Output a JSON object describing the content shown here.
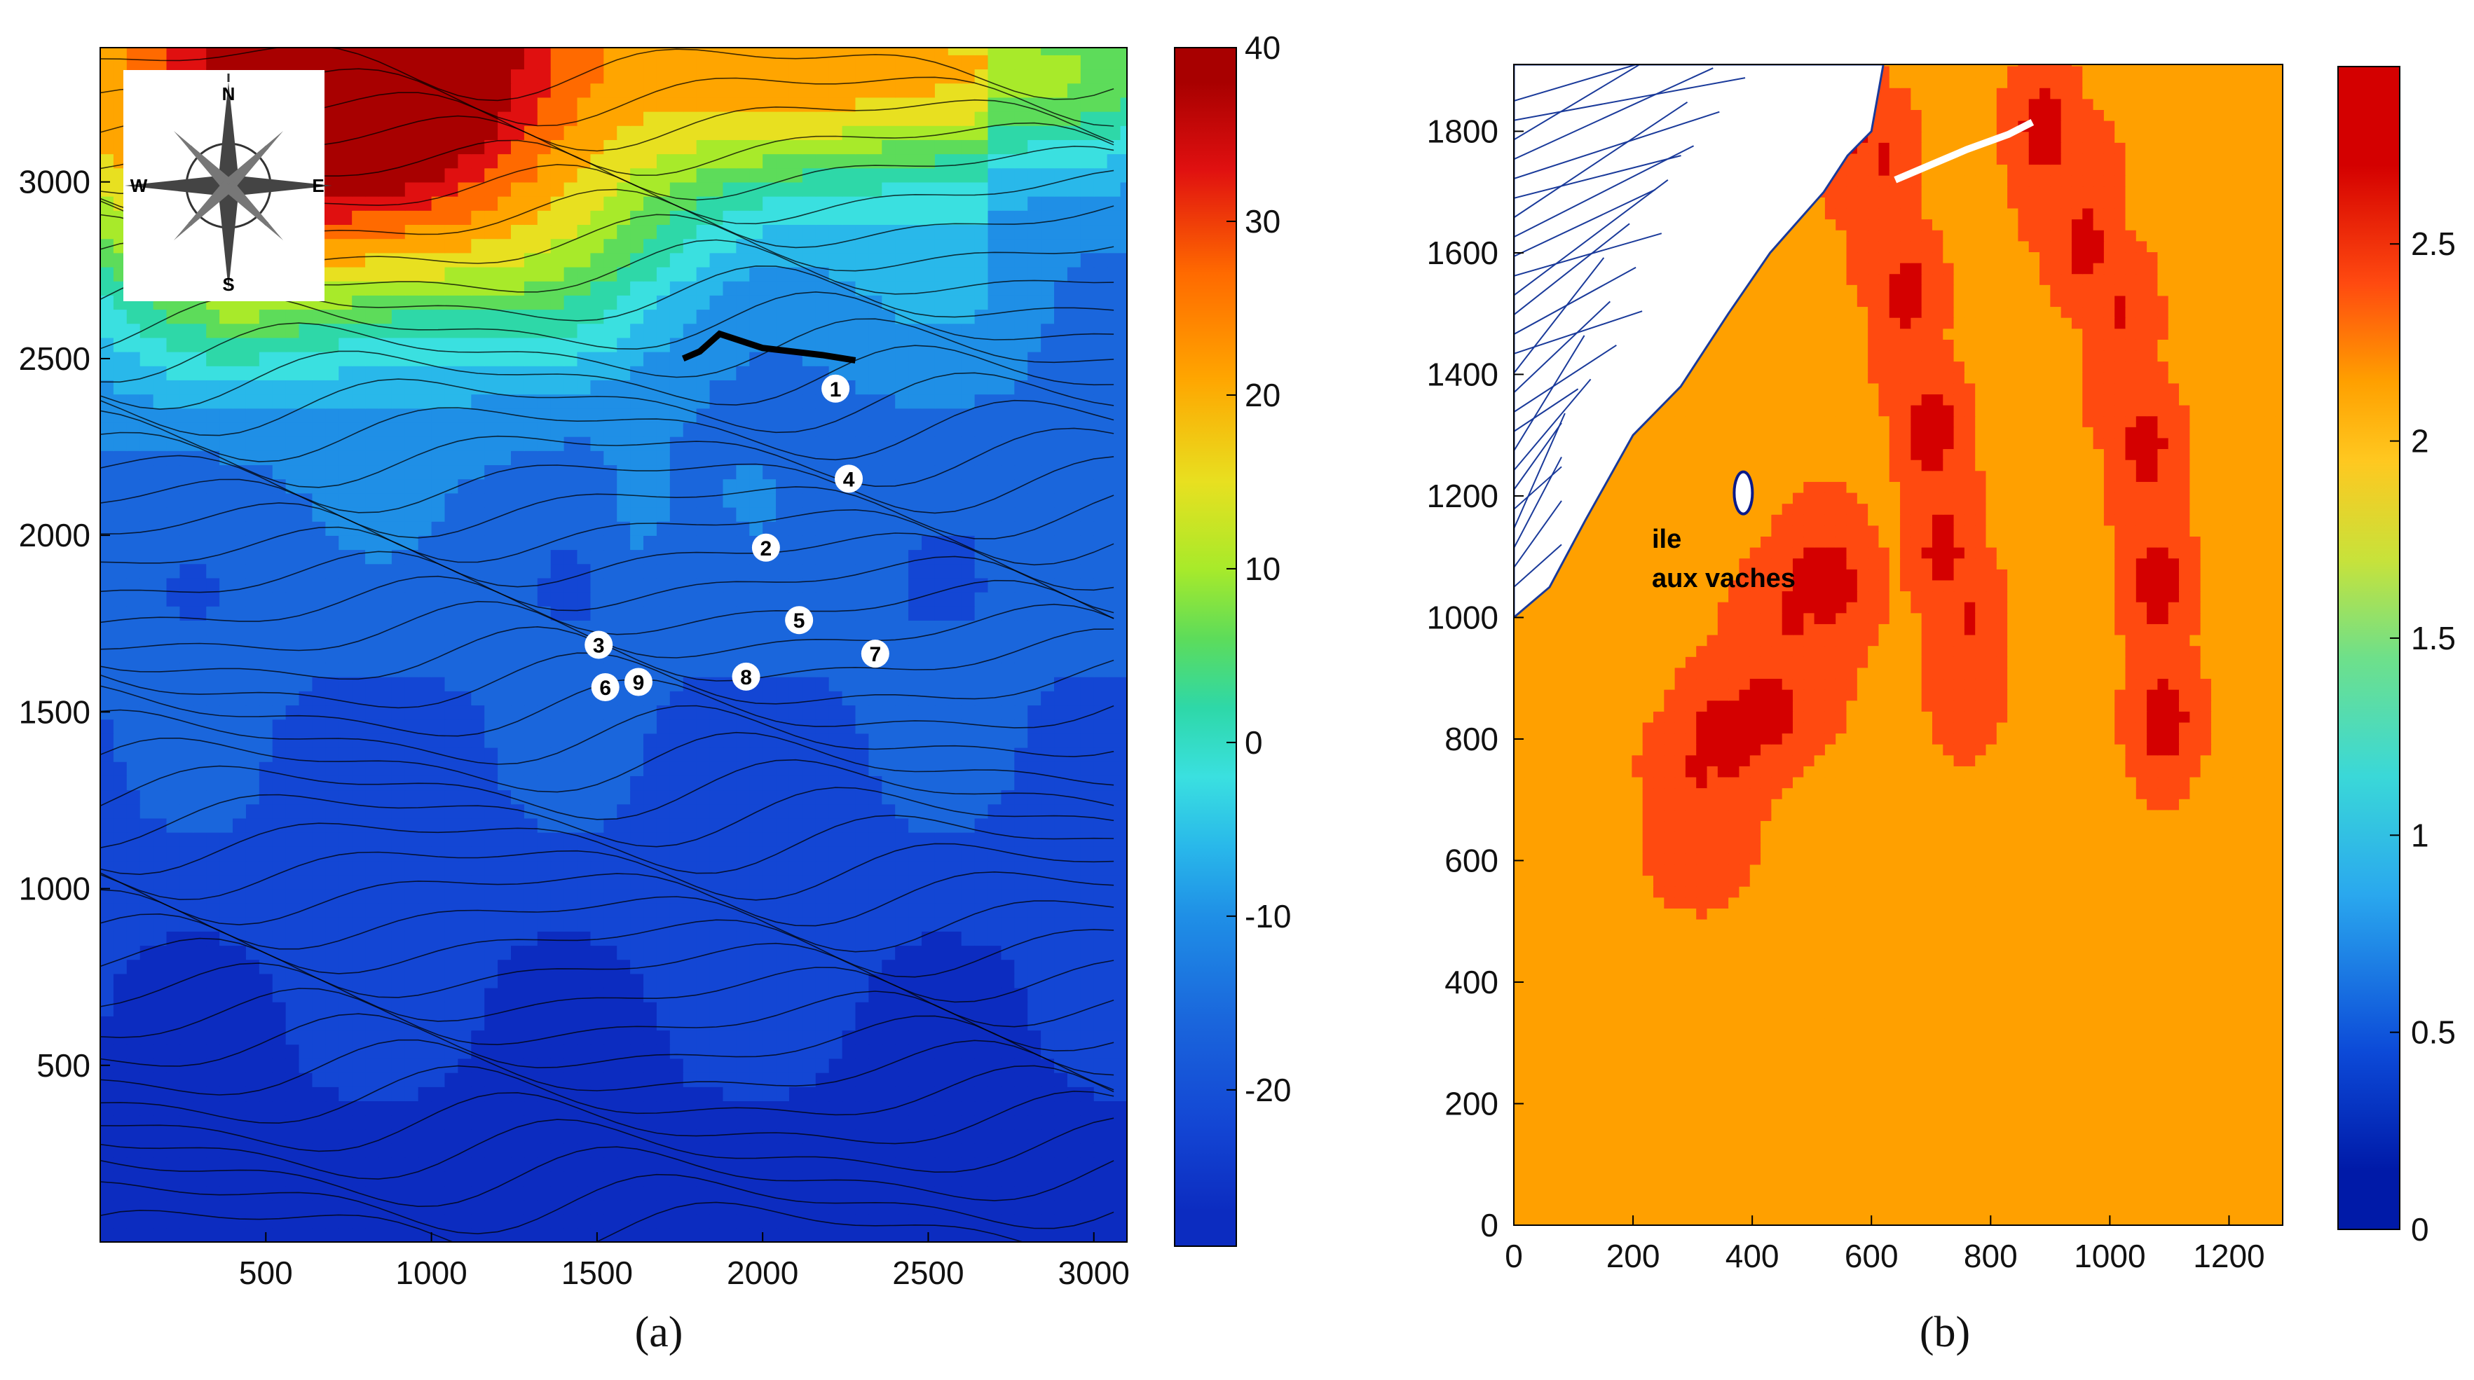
{
  "chart_data": [
    {
      "type": "heatmap",
      "panel_label": "(a)",
      "x_ticks": [
        500,
        1000,
        1500,
        2000,
        2500,
        3000
      ],
      "y_ticks": [
        500,
        1000,
        1500,
        2000,
        2500,
        3000
      ],
      "xlim": [
        0,
        3100
      ],
      "ylim": [
        0,
        3380
      ],
      "colorbar": {
        "ticks": [
          40,
          30,
          20,
          10,
          0,
          -10,
          -20
        ],
        "range": [
          -29,
          40
        ]
      },
      "compass": {
        "north": "N",
        "south": "S",
        "east": "E",
        "west": "W"
      },
      "markers": [
        {
          "label": "1",
          "x": 2220,
          "y": 2415
        },
        {
          "label": "2",
          "x": 2010,
          "y": 1965
        },
        {
          "label": "3",
          "x": 1505,
          "y": 1690
        },
        {
          "label": "4",
          "x": 2260,
          "y": 2160
        },
        {
          "label": "5",
          "x": 2110,
          "y": 1760
        },
        {
          "label": "6",
          "x": 1525,
          "y": 1570
        },
        {
          "label": "7",
          "x": 2340,
          "y": 1665
        },
        {
          "label": "8",
          "x": 1950,
          "y": 1600
        },
        {
          "label": "9",
          "x": 1625,
          "y": 1585
        }
      ],
      "structures": [
        {
          "x": [
            1760,
            1810,
            1870,
            2000,
            2180,
            2280
          ],
          "y": [
            2500,
            2520,
            2570,
            2530,
            2510,
            2495
          ]
        }
      ],
      "bands": [
        {
          "value": 38,
          "color": "#a80000"
        },
        {
          "value": 33,
          "color": "#e01010"
        },
        {
          "value": 27,
          "color": "#ff6a00"
        },
        {
          "value": 21,
          "color": "#ffa500"
        },
        {
          "value": 15,
          "color": "#e8e020"
        },
        {
          "value": 10,
          "color": "#a8ea2a"
        },
        {
          "value": 6,
          "color": "#5ddc5a"
        },
        {
          "value": 2,
          "color": "#2ed8a8"
        },
        {
          "value": -2,
          "color": "#3ae0e0"
        },
        {
          "value": -6,
          "color": "#29b8ea"
        },
        {
          "value": -10,
          "color": "#1f8fe6"
        },
        {
          "value": -16,
          "color": "#1a66dc"
        },
        {
          "value": -22,
          "color": "#1346d4"
        },
        {
          "value": -27,
          "color": "#0c2cc0"
        }
      ]
    },
    {
      "type": "heatmap",
      "panel_label": "(b)",
      "x_ticks": [
        0,
        200,
        400,
        600,
        800,
        1000,
        1200
      ],
      "y_ticks": [
        0,
        200,
        400,
        600,
        800,
        1000,
        1200,
        1400,
        1600,
        1800
      ],
      "xlim": [
        0,
        1290
      ],
      "ylim": [
        0,
        1910
      ],
      "colorbar": {
        "ticks": [
          2.5,
          2,
          1.5,
          1,
          0.5,
          0
        ],
        "range": [
          0,
          2.95
        ]
      },
      "annotation": [
        "ile",
        "aux vaches"
      ],
      "island": {
        "x": 385,
        "y": 1205
      },
      "breakwater": {
        "x": [
          640,
          700,
          760,
          830,
          870
        ],
        "y": [
          1720,
          1745,
          1770,
          1795,
          1815
        ]
      },
      "bands": [
        {
          "value": 2.7,
          "color": "#d40000"
        },
        {
          "value": 2.4,
          "color": "#ff4a10"
        },
        {
          "value": 2.15,
          "color": "#ffa000"
        },
        {
          "value": 1.95,
          "color": "#ffc820"
        },
        {
          "value": 1.7,
          "color": "#c8e23a"
        },
        {
          "value": 1.45,
          "color": "#6ee08a"
        },
        {
          "value": 1.15,
          "color": "#3ad8d8"
        },
        {
          "value": 0.85,
          "color": "#2aa8ee"
        },
        {
          "value": 0.45,
          "color": "#0c4ad8"
        },
        {
          "value": 0.15,
          "color": "#001aa8"
        }
      ],
      "jets": [
        {
          "x": [
            560,
            620,
            660,
            700,
            720,
            760
          ],
          "y": [
            1820,
            1700,
            1500,
            1300,
            1150,
            950
          ]
        },
        {
          "x": [
            890,
            960,
            1020,
            1060,
            1080,
            1090
          ],
          "y": [
            1790,
            1650,
            1450,
            1250,
            1050,
            850
          ]
        },
        {
          "x": [
            310,
            360,
            420,
            470,
            520
          ],
          "y": [
            700,
            800,
            880,
            960,
            1050
          ]
        }
      ]
    }
  ]
}
